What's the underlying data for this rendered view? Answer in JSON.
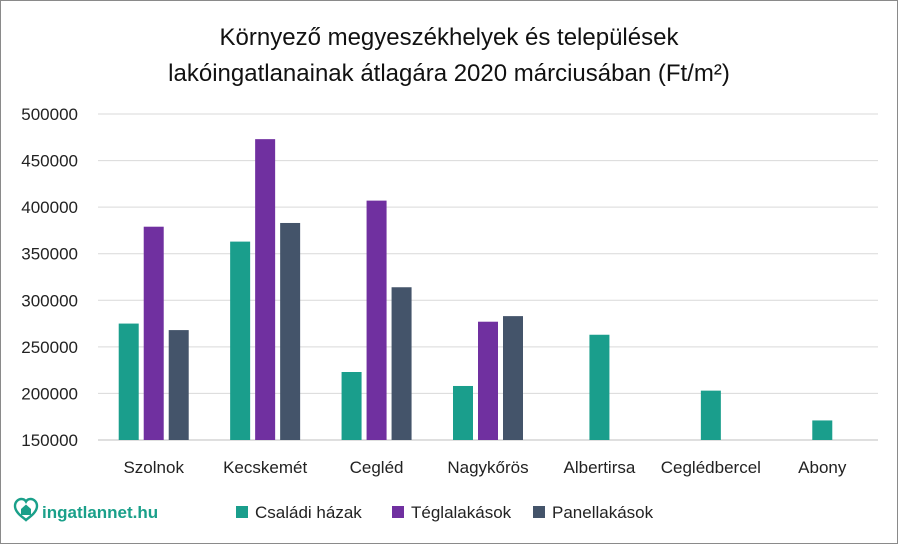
{
  "chart_data": {
    "type": "bar",
    "title": [
      "Környező megyeszékhelyek és települések",
      "lakóingatlanainak átlagára 2020 márciusában (Ft/m²)"
    ],
    "categories": [
      "Szolnok",
      "Kecskemét",
      "Cegléd",
      "Nagykőrös",
      "Albertirsa",
      "Ceglédbercel",
      "Abony"
    ],
    "series": [
      {
        "name": "Családi házak",
        "color": "#1a9e8c",
        "values": [
          275000,
          363000,
          223000,
          208000,
          263000,
          203000,
          171000
        ]
      },
      {
        "name": "Téglalakások",
        "color": "#7030a0",
        "values": [
          379000,
          473000,
          407000,
          277000,
          null,
          null,
          null
        ]
      },
      {
        "name": "Panellakások",
        "color": "#44546a",
        "values": [
          268000,
          383000,
          314000,
          283000,
          null,
          null,
          null
        ]
      }
    ],
    "ylim": [
      150000,
      500000
    ],
    "yticks": [
      150000,
      200000,
      250000,
      300000,
      350000,
      400000,
      450000,
      500000
    ],
    "grid": true,
    "legend": "bottom"
  },
  "branding": {
    "logo_text": "ingatlannet.hu",
    "logo_icon": "heart-house-icon"
  }
}
